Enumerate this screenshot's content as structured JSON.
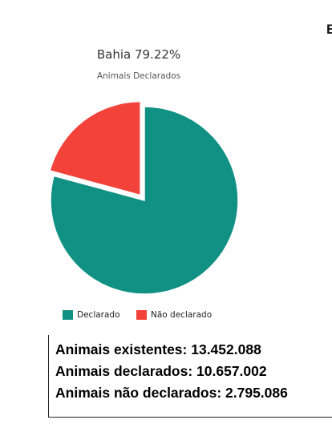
{
  "edge_text": "E",
  "chart_data": {
    "type": "pie",
    "title": "Bahia 79.22%",
    "subtitle": "Animais Declarados",
    "categories": [
      "Declarado",
      "Não declarado"
    ],
    "values": [
      79.22,
      20.78
    ],
    "colors": [
      "#119184",
      "#f2423a"
    ],
    "exploded": [
      false,
      true
    ],
    "legend_position": "bottom"
  },
  "legend": {
    "items": [
      {
        "label": "Declarado",
        "color": "#119184"
      },
      {
        "label": "Não declarado",
        "color": "#f2423a"
      }
    ]
  },
  "stats": {
    "existing": "Animais existentes: 13.452.088",
    "declared": "Animais declarados: 10.657.002",
    "undeclared": "Animais não declarados: 2.795.086"
  }
}
